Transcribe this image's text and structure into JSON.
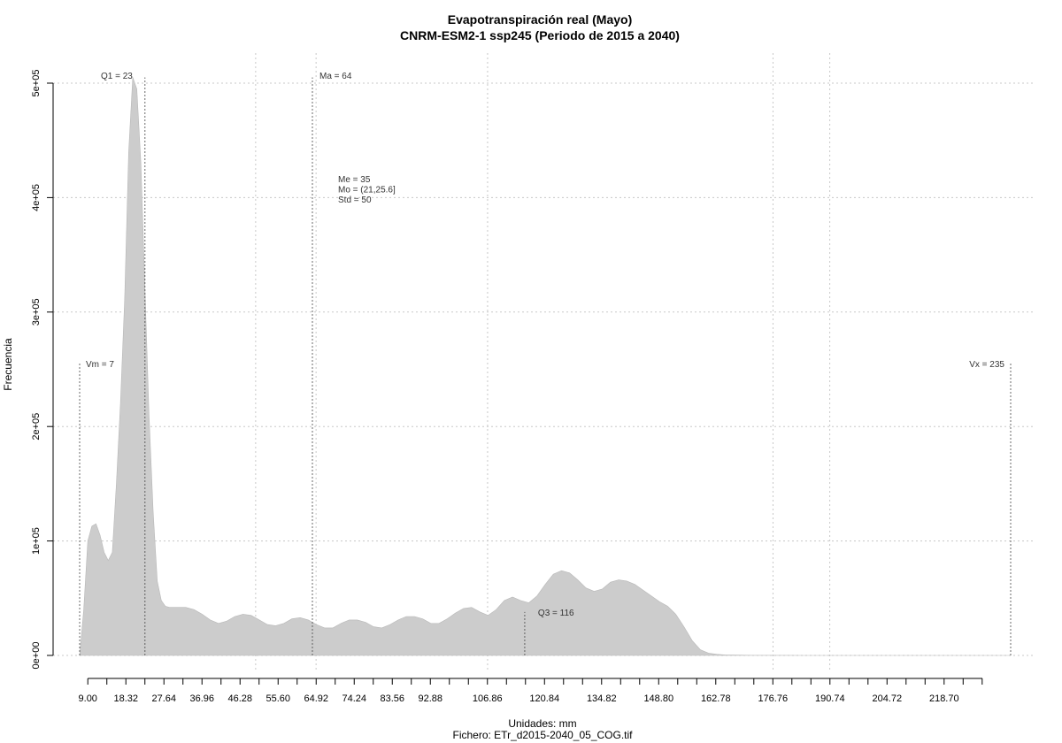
{
  "chart_data": {
    "type": "area",
    "title": "Evapotranspiración real (Mayo)",
    "subtitle": "CNRM-ESM2-1 ssp245 (Periodo de 2015 a 2040)",
    "xlabel": "Unidades: mm",
    "ylabel": "Frecuencia",
    "footer": "Fichero: ETr_d2015-2040_05_COG.tif",
    "xlim": [
      7,
      235
    ],
    "ylim": [
      0,
      500000
    ],
    "grid": true,
    "x_major_ticks": [
      9.0,
      18.32,
      27.64,
      36.96,
      46.28,
      55.6,
      64.92,
      74.24,
      83.56,
      92.88,
      106.86,
      120.84,
      134.82,
      148.8,
      162.78,
      176.76,
      190.74,
      204.72,
      218.7
    ],
    "x_major_tick_labels": [
      "9.00",
      "18.32",
      "27.64",
      "36.96",
      "46.28",
      "55.60",
      "64.92",
      "74.24",
      "83.56",
      "92.88",
      "106.86",
      "120.84",
      "134.82",
      "148.80",
      "162.78",
      "176.76",
      "190.74",
      "204.72",
      "218.70"
    ],
    "y_ticks": [
      0,
      100000,
      200000,
      300000,
      400000,
      500000
    ],
    "y_tick_labels": [
      "0e+00",
      "1e+05",
      "2e+05",
      "3e+05",
      "4e+05",
      "5e+05"
    ],
    "x_grid": [
      50.1,
      64.9,
      106.9,
      176.8,
      190.7
    ],
    "fill_color": "#cccccc",
    "series": [
      {
        "x": [
          7,
          8,
          9,
          10,
          11,
          12,
          13,
          14,
          15,
          16,
          17,
          18,
          19,
          20,
          21,
          22,
          23,
          24,
          25,
          26,
          27,
          28,
          29,
          30,
          31,
          33,
          35,
          37,
          39,
          41,
          43,
          45,
          47,
          49,
          51,
          53,
          55,
          57,
          59,
          61,
          63,
          65,
          67,
          69,
          71,
          73,
          75,
          77,
          79,
          81,
          83,
          85,
          87,
          89,
          91,
          93,
          95,
          97,
          99,
          101,
          103,
          105,
          107,
          109,
          111,
          113,
          115,
          117,
          119,
          121,
          123,
          125,
          127,
          129,
          131,
          133,
          135,
          137,
          139,
          141,
          143,
          145,
          147,
          149,
          151,
          153,
          155,
          157,
          159,
          161,
          163,
          165,
          167,
          169,
          172,
          176,
          185,
          200,
          215,
          230,
          235
        ],
        "y": [
          0,
          40000,
          100000,
          113000,
          115000,
          105000,
          90000,
          83000,
          90000,
          150000,
          220000,
          310000,
          440000,
          505000,
          495000,
          430000,
          320000,
          210000,
          125000,
          65000,
          48000,
          43000,
          42000,
          42000,
          42000,
          42000,
          40000,
          36000,
          31000,
          28000,
          30000,
          34000,
          36000,
          35000,
          31000,
          27000,
          26000,
          28000,
          32000,
          33000,
          31000,
          27000,
          24000,
          24000,
          28000,
          31000,
          31000,
          29000,
          25000,
          24000,
          27000,
          31000,
          34000,
          34000,
          32000,
          28000,
          28000,
          32000,
          37000,
          41000,
          42000,
          38000,
          35000,
          40000,
          48000,
          51000,
          48000,
          46000,
          52000,
          62000,
          71000,
          74000,
          72000,
          66000,
          59000,
          56000,
          58000,
          64000,
          66000,
          65000,
          62000,
          57000,
          52000,
          47000,
          43000,
          36000,
          25000,
          13000,
          5000,
          2000,
          1000,
          500,
          300,
          200,
          100,
          50,
          20,
          10,
          5,
          1,
          0
        ]
      }
    ],
    "reference_lines": [
      {
        "label": "Vm = 7",
        "x": 7,
        "y_top": 255000
      },
      {
        "label": "Q1 = 23",
        "x": 23,
        "y_top": 505000
      },
      {
        "label": "Ma = 64",
        "x": 64,
        "y_top": 505000
      },
      {
        "label": "Q3 = 116",
        "x": 116,
        "y_top": 38000
      },
      {
        "label": "Vx = 235",
        "x": 235,
        "y_top": 255000
      }
    ],
    "stats_text": [
      "Me = 35",
      "Mo = (21,25.6]",
      "Std = 50"
    ]
  }
}
